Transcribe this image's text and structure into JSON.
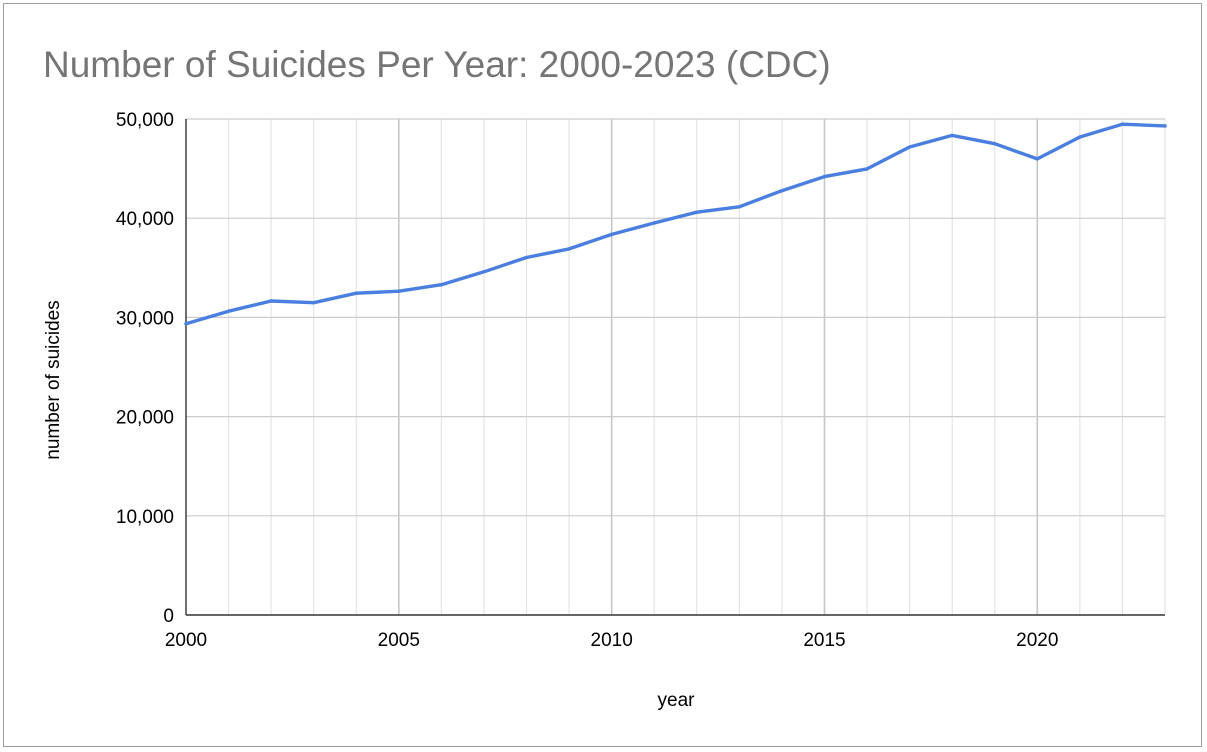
{
  "chart_data": {
    "type": "line",
    "title": "Number of Suicides Per Year: 2000-2023 (CDC)",
    "xlabel": "year",
    "ylabel": "number of suicides",
    "xlim": [
      2000,
      2023
    ],
    "ylim": [
      0,
      50000
    ],
    "x_ticks": [
      "2000",
      "2005",
      "2010",
      "2015",
      "2020"
    ],
    "x_tick_values": [
      2000,
      2005,
      2010,
      2015,
      2020
    ],
    "y_ticks": [
      "0",
      "10,000",
      "20,000",
      "30,000",
      "40,000",
      "50,000"
    ],
    "y_tick_values": [
      0,
      10000,
      20000,
      30000,
      40000,
      50000
    ],
    "grid": true,
    "legend": "none",
    "line_color": "#4a7fe0",
    "x": [
      2000,
      2001,
      2002,
      2003,
      2004,
      2005,
      2006,
      2007,
      2008,
      2009,
      2010,
      2011,
      2012,
      2013,
      2014,
      2015,
      2016,
      2017,
      2018,
      2019,
      2020,
      2021,
      2022,
      2023
    ],
    "series": [
      {
        "values": [
          29350,
          30620,
          31655,
          31484,
          32439,
          32637,
          33300,
          34598,
          36035,
          36909,
          38364,
          39518,
          40600,
          41149,
          42773,
          44193,
          44965,
          47173,
          48344,
          47511,
          45979,
          48183,
          49476,
          49300
        ]
      }
    ]
  }
}
